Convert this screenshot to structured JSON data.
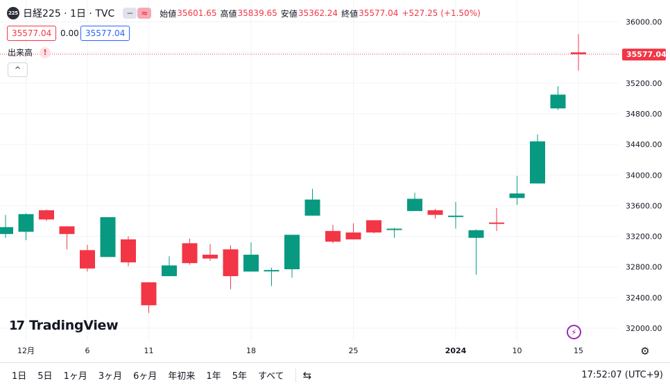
{
  "header": {
    "symbol_badge": "225",
    "title": "日経225 · 1日 · TVC",
    "toggle_grey": "−",
    "toggle_red": "≈",
    "open_label": "始値",
    "open_value": "35601.65",
    "high_label": "高値",
    "high_value": "35839.65",
    "low_label": "安値",
    "low_value": "35362.24",
    "close_label": "終値",
    "close_value": "35577.04",
    "change": "+527.25 (+1.50%)"
  },
  "price_boxes": {
    "bid": "35577.04",
    "spread": "0.00",
    "ask": "35577.04"
  },
  "volume": {
    "label": "出来高",
    "warning": "!"
  },
  "collapse_icon": "^",
  "logo": {
    "mark": "17",
    "text": "TradingView"
  },
  "time_ranges": [
    "1日",
    "5日",
    "1ヶ月",
    "3ヶ月",
    "6ヶ月",
    "年初来",
    "1年",
    "5年",
    "すべて"
  ],
  "compare_icon": "⇆",
  "clock": "17:52:07 (UTC+9)",
  "bolt_icon": "⚡",
  "gear_icon": "⚙",
  "colors": {
    "up": "#089981",
    "down": "#f23645",
    "grid": "#f0f3fa",
    "axis_text": "#131722"
  },
  "chart_data": {
    "type": "candlestick",
    "last_price": 35577.04,
    "last_price_label": "35577.04",
    "ylim": [
      31800,
      36200
    ],
    "y_ticks": [
      32000,
      32400,
      32800,
      33200,
      33600,
      34000,
      34400,
      34800,
      35200,
      35600,
      36000
    ],
    "y_tick_labels": [
      "32000.00",
      "32400.00",
      "32800.00",
      "33200.00",
      "33600.00",
      "34000.00",
      "34400.00",
      "34800.00",
      "35200.00",
      "35600.00",
      "36000.00"
    ],
    "x_ticks": [
      {
        "index": 1,
        "label": "12月",
        "bold": false
      },
      {
        "index": 4,
        "label": "6",
        "bold": false
      },
      {
        "index": 7,
        "label": "11",
        "bold": false
      },
      {
        "index": 12,
        "label": "18",
        "bold": false
      },
      {
        "index": 17,
        "label": "25",
        "bold": false
      },
      {
        "index": 22,
        "label": "2024",
        "bold": true
      },
      {
        "index": 25,
        "label": "10",
        "bold": false
      },
      {
        "index": 28,
        "label": "15",
        "bold": false
      }
    ],
    "candles": [
      {
        "o": 33230,
        "h": 33480,
        "l": 33180,
        "c": 33320
      },
      {
        "o": 33260,
        "h": 33500,
        "l": 33150,
        "c": 33490
      },
      {
        "o": 33540,
        "h": 33550,
        "l": 33400,
        "c": 33420
      },
      {
        "o": 33330,
        "h": 33330,
        "l": 33030,
        "c": 33230
      },
      {
        "o": 33020,
        "h": 33090,
        "l": 32740,
        "c": 32780
      },
      {
        "o": 32930,
        "h": 33450,
        "l": 32930,
        "c": 33450
      },
      {
        "o": 33160,
        "h": 33200,
        "l": 32810,
        "c": 32860
      },
      {
        "o": 32600,
        "h": 32600,
        "l": 32200,
        "c": 32300
      },
      {
        "o": 32680,
        "h": 32940,
        "l": 32680,
        "c": 32820
      },
      {
        "o": 33110,
        "h": 33170,
        "l": 32830,
        "c": 32850
      },
      {
        "o": 32960,
        "h": 33100,
        "l": 32880,
        "c": 32910
      },
      {
        "o": 33030,
        "h": 33080,
        "l": 32510,
        "c": 32680
      },
      {
        "o": 32740,
        "h": 33120,
        "l": 32740,
        "c": 32960
      },
      {
        "o": 32760,
        "h": 32790,
        "l": 32550,
        "c": 32760
      },
      {
        "o": 32770,
        "h": 33220,
        "l": 32660,
        "c": 33220
      },
      {
        "o": 33470,
        "h": 33820,
        "l": 33470,
        "c": 33680
      },
      {
        "o": 33270,
        "h": 33350,
        "l": 33110,
        "c": 33130
      },
      {
        "o": 33250,
        "h": 33370,
        "l": 33160,
        "c": 33160
      },
      {
        "o": 33410,
        "h": 33410,
        "l": 33240,
        "c": 33250
      },
      {
        "o": 33300,
        "h": 33310,
        "l": 33180,
        "c": 33300
      },
      {
        "o": 33530,
        "h": 33770,
        "l": 33530,
        "c": 33690
      },
      {
        "o": 33540,
        "h": 33560,
        "l": 33430,
        "c": 33480
      },
      {
        "o": 33470,
        "h": 33650,
        "l": 33300,
        "c": 33470
      },
      {
        "o": 33180,
        "h": 33290,
        "l": 32700,
        "c": 33280
      },
      {
        "o": 33380,
        "h": 33570,
        "l": 33270,
        "c": 33370
      },
      {
        "o": 33700,
        "h": 33990,
        "l": 33610,
        "c": 33760
      },
      {
        "o": 33890,
        "h": 34530,
        "l": 33890,
        "c": 34440
      },
      {
        "o": 34870,
        "h": 35160,
        "l": 34850,
        "c": 35050
      },
      {
        "o": 35601.65,
        "h": 35839.65,
        "l": 35362.24,
        "c": 35577.04
      }
    ]
  }
}
